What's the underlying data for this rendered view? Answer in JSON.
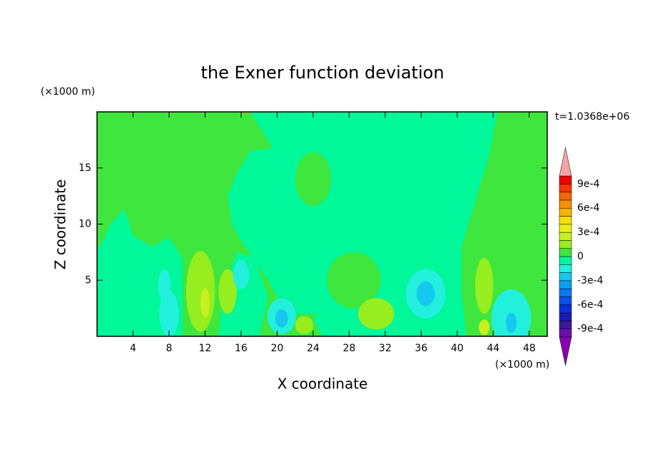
{
  "chart_data": {
    "type": "contour",
    "title": "the Exner function deviation",
    "x_label": "X coordinate",
    "y_label": "Z coordinate",
    "x_unit": "(×1000 m)",
    "y_unit": "(×1000 m)",
    "annotation": "t=1.0368e+06",
    "xlim": [
      0,
      50
    ],
    "ylim": [
      0,
      20
    ],
    "xticks": [
      4,
      8,
      12,
      16,
      20,
      24,
      28,
      32,
      36,
      40,
      44,
      48
    ],
    "yticks": [
      5,
      10,
      15
    ],
    "levels": [
      -0.001,
      -0.0009,
      -0.0008,
      -0.0007,
      -0.0006,
      -0.0005,
      -0.0004,
      -0.0003,
      -0.0002,
      -0.0001,
      0,
      0.0001,
      0.0002,
      0.0003,
      0.0004,
      0.0005,
      0.0006,
      0.0007,
      0.0008,
      0.0009,
      0.001
    ],
    "colors": [
      "#6a10a8",
      "#3a1a9a",
      "#1a1ab8",
      "#0a30d8",
      "#0a50ea",
      "#0a78f0",
      "#0aa0f0",
      "#14c8f0",
      "#22f0dc",
      "#00f79a",
      "#3ee63e",
      "#96ee1e",
      "#c8f020",
      "#e8f018",
      "#f8e000",
      "#f8b400",
      "#f89000",
      "#f86400",
      "#f83400",
      "#f00000"
    ],
    "extend_colors": [
      "#8a00b0",
      "#f4a4a4"
    ],
    "colorbar_ticks": [
      {
        "value": -0.0009,
        "label": "-9e-4"
      },
      {
        "value": -0.0006,
        "label": "-6e-4"
      },
      {
        "value": -0.0003,
        "label": "-3e-4"
      },
      0,
      {
        "value": 0.0003,
        "label": "3e-4"
      },
      {
        "value": 0.0006,
        "label": "6e-4"
      },
      {
        "value": 0.0009,
        "label": "9e-4"
      }
    ]
  }
}
